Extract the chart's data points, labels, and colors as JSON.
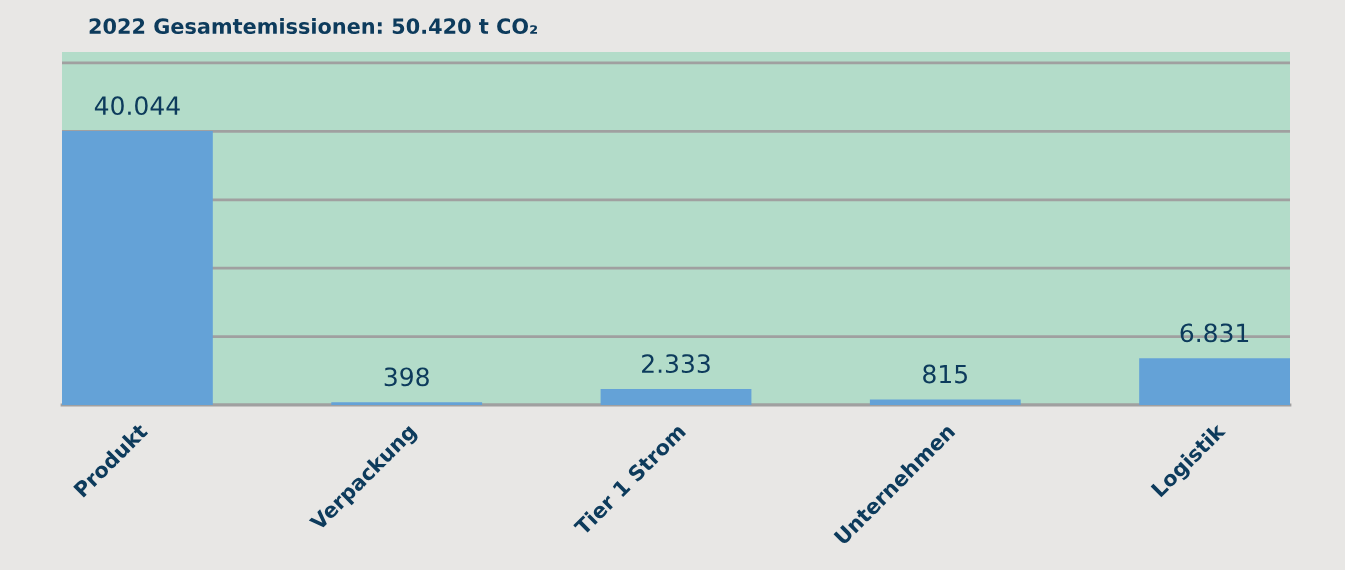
{
  "chart_data": {
    "type": "bar",
    "title": "2022 Gesamtemissionen: 50.420 t CO₂",
    "categories": [
      "Produkt",
      "Verpackung",
      "Tier 1 Strom",
      "Unternehmen",
      "Logistik"
    ],
    "values": [
      40044,
      398,
      2333,
      815,
      6831
    ],
    "value_labels": [
      "40.044",
      "398",
      "2.333",
      "815",
      "6.831"
    ],
    "color": "#64a2d7",
    "ylim": [
      0,
      51600
    ],
    "yticks": [
      {
        "value": 0,
        "label": null
      },
      {
        "value": 10000,
        "label": null
      },
      {
        "value": 20000,
        "label": null
      },
      {
        "value": 30000,
        "label": null
      },
      {
        "value": 40000,
        "label": null
      },
      {
        "value": 50000,
        "label": null
      }
    ],
    "tick_labels": "x",
    "grid": "y"
  }
}
